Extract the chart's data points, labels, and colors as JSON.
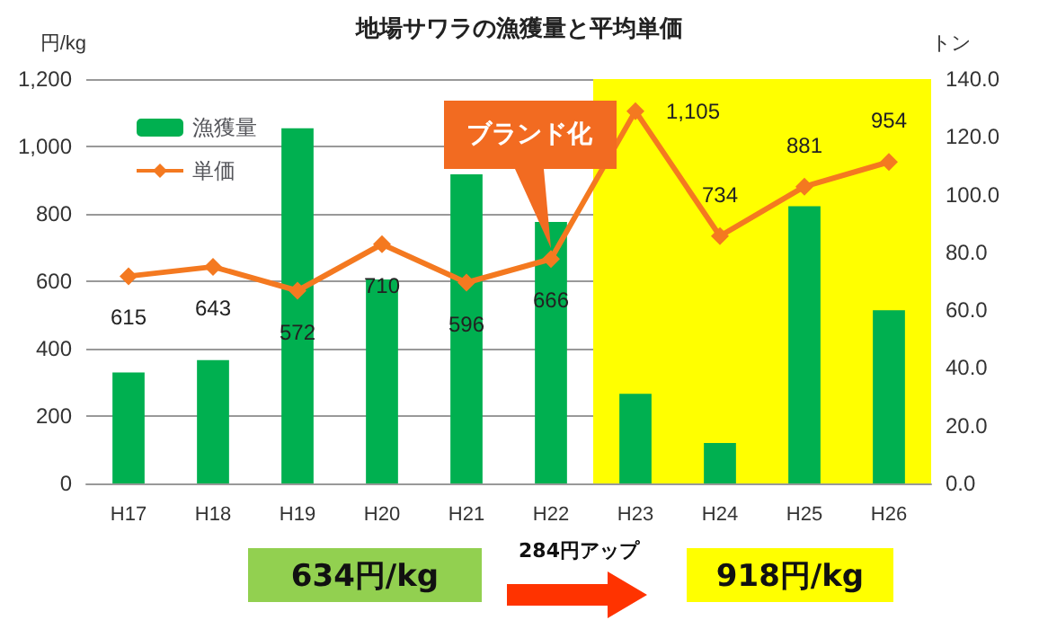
{
  "chart_data": {
    "type": "bar",
    "title": "地場サワラの漁獲量と平均単価",
    "ylabel": "円/kg",
    "y2label": "トン",
    "categories": [
      "H17",
      "H18",
      "H19",
      "H20",
      "H21",
      "H22",
      "H23",
      "H24",
      "H25",
      "H26"
    ],
    "series": [
      {
        "name": "漁獲量",
        "axis": "y2",
        "color": "#00b050",
        "values": [
          38.4,
          42.7,
          123,
          70.6,
          107,
          90.5,
          31,
          14,
          96,
          60
        ]
      },
      {
        "name": "単価",
        "type": "line",
        "axis": "y",
        "color": "#f47920",
        "marker": "diamond",
        "values": [
          615,
          643,
          572,
          710,
          596,
          666,
          1105,
          734,
          881,
          954
        ],
        "value_labels": [
          "615",
          "643",
          "572",
          "710",
          "596",
          "666",
          "1,105",
          "734",
          "881",
          "954"
        ]
      }
    ],
    "ylim": [
      0,
      1200
    ],
    "yticks": [
      0,
      {
        "value": 200,
        "label": "200"
      },
      {
        "value": 400,
        "label": "400"
      },
      {
        "value": 600,
        "label": "600"
      },
      {
        "value": 800,
        "label": "800"
      },
      {
        "value": 1000,
        "label": "1,000"
      },
      {
        "value": 1200,
        "label": "1,200"
      }
    ],
    "y2lim": [
      0,
      140
    ],
    "y2ticks": [
      {
        "value": 0,
        "label": "0.0"
      },
      {
        "value": 20,
        "label": "20.0"
      },
      {
        "value": 40,
        "label": "40.0"
      },
      {
        "value": 60,
        "label": "60.0"
      },
      {
        "value": 80,
        "label": "80.0"
      },
      {
        "value": 100,
        "label": "100.0"
      },
      {
        "value": 120,
        "label": "120.0"
      },
      {
        "value": 140,
        "label": "140.0"
      }
    ],
    "bands": [
      {
        "axis": "x",
        "from": "H23",
        "to": "H26",
        "color": "#ffff00"
      }
    ],
    "annotations": [
      {
        "text": "ブランド化",
        "x": "H22",
        "y": 666
      },
      "634円/kg",
      "284円アップ",
      "918円/kg"
    ],
    "grid": "y",
    "legend": "top left"
  }
}
